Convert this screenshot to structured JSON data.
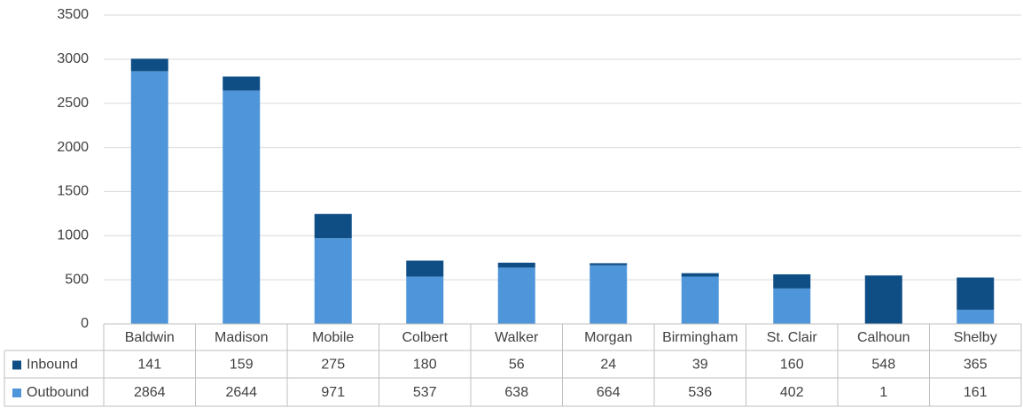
{
  "chart_data": {
    "type": "stacked_bar",
    "categories": [
      "Baldwin",
      "Madison",
      "Mobile",
      "Colbert",
      "Walker",
      "Morgan",
      "Birmingham",
      "St. Clair",
      "Calhoun",
      "Shelby"
    ],
    "series": [
      {
        "name": "Inbound",
        "color": "#0f4d85",
        "values": [
          141,
          159,
          275,
          180,
          56,
          24,
          39,
          160,
          548,
          365
        ]
      },
      {
        "name": "Outbound",
        "color": "#4e95d9",
        "values": [
          2864,
          2644,
          971,
          537,
          638,
          664,
          536,
          402,
          1,
          161
        ]
      }
    ],
    "ylim": [
      0,
      3500
    ],
    "yticks": [
      0,
      500,
      1000,
      1500,
      2000,
      2500,
      3000,
      3500
    ],
    "grid": true
  }
}
